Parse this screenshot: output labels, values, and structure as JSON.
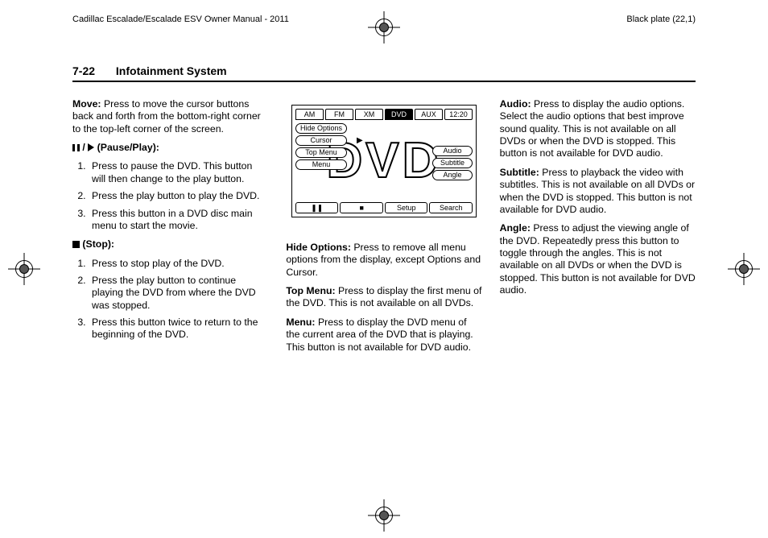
{
  "meta": {
    "manual_title": "Cadillac Escalade/Escalade ESV Owner Manual - 2011",
    "plate": "Black plate (22,1)"
  },
  "header": {
    "page_num": "7-22",
    "section": "Infotainment System"
  },
  "col1": {
    "move_label": "Move:",
    "move_text": " Press to move the cursor buttons back and forth from the bottom-right corner to the top-left corner of the screen.",
    "pauseplay_label": " (Pause/Play):",
    "pp1": "Press to pause the DVD. This button will then change to the play button.",
    "pp2": "Press the play button to play the DVD.",
    "pp3": "Press this button in a DVD disc main menu to start the movie.",
    "stop_label": " (Stop):",
    "st1": "Press to stop play of the DVD.",
    "st2": "Press the play button to continue playing the DVD from where the DVD was stopped.",
    "st3": "Press this button twice to return to the beginning of the DVD."
  },
  "diagram": {
    "tabs": [
      "AM",
      "FM",
      "XM",
      "DVD",
      "AUX",
      "12:20"
    ],
    "left_pills": [
      "Hide Options",
      "Cursor",
      "Top Menu",
      "Menu"
    ],
    "right_pills": [
      "Audio",
      "Subtitle",
      "Angle"
    ],
    "bottom": [
      "❚❚",
      "■",
      "Setup",
      "Search"
    ],
    "bg": "DVD"
  },
  "col2": {
    "hideopt_label": "Hide Options:",
    "hideopt_text": " Press to remove all menu options from the display, except Options and Cursor.",
    "topmenu_label": "Top Menu:",
    "topmenu_text": " Press to display the first menu of the DVD. This is not available on all DVDs.",
    "menu_label": "Menu:",
    "menu_text": " Press to display the DVD menu of the current area of the DVD that is playing. This button is not available for DVD audio."
  },
  "col3": {
    "audio_label": "Audio:",
    "audio_text": " Press to display the audio options. Select the audio options that best improve sound quality. This is not available on all DVDs or when the DVD is stopped. This button is not available for DVD audio.",
    "subtitle_label": "Subtitle:",
    "subtitle_text": " Press to playback the video with subtitles. This is not available on all DVDs or when the DVD is stopped. This button is not available for DVD audio.",
    "angle_label": "Angle:",
    "angle_text": " Press to adjust the viewing angle of the DVD. Repeatedly press this button to toggle through the angles. This is not available on all DVDs or when the DVD is stopped. This button is not available for DVD audio."
  }
}
